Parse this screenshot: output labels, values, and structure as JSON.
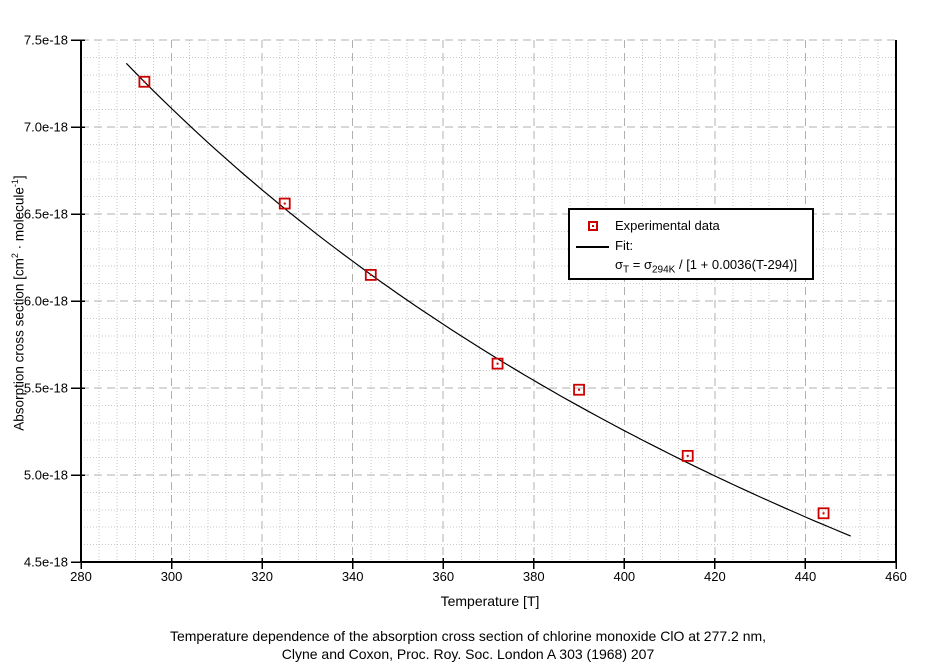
{
  "chart_data": {
    "type": "scatter",
    "caption_line1": "Temperature dependence of the absorption cross section of chlorine monoxide ClO at 277.2 nm,",
    "caption_line2": "Clyne and Coxon, Proc. Roy. Soc. London A 303 (1968) 207",
    "xlabel": "Temperature [T]",
    "ylabel": "Absorption cross section [cm2 · molecule-1]",
    "ylabel_parts": {
      "prefix": "Absorption cross section [cm",
      "sup1": "2",
      "mid": " · molecule",
      "sup2": "-1",
      "suffix": "]"
    },
    "xlim": [
      280,
      460
    ],
    "ylim_e18": [
      4.5,
      7.5
    ],
    "x_tick_labels": [
      "280",
      "300",
      "320",
      "340",
      "360",
      "380",
      "400",
      "420",
      "440",
      "460"
    ],
    "y_tick_labels": [
      "4.5e-18",
      "5.0e-18",
      "5.5e-18",
      "6.0e-18",
      "6.5e-18",
      "7.0e-18",
      "7.5e-18"
    ],
    "x_major_step": 20,
    "x_minor_step": 4,
    "y_major_step_e18": 0.5,
    "y_minor_step_e18": 0.1,
    "grid": {
      "major": "gray-dashed",
      "minor": "gray-dotted"
    },
    "legend_position": "upper-right-inside",
    "series": [
      {
        "name": "Experimental data",
        "type": "scatter",
        "marker": "open-square-center-dot",
        "color": "#cc0000",
        "x": [
          294,
          325,
          344,
          372,
          390,
          414,
          444
        ],
        "y_e18": [
          7.26,
          6.56,
          6.15,
          5.64,
          5.49,
          5.11,
          4.78
        ]
      },
      {
        "name": "Fit",
        "type": "line",
        "color": "#000000",
        "formula_text": "σT = σ294K / [1 + 0.0036(T-294)]",
        "sigma_294K_e18": 7.26,
        "coefficient": 0.0036,
        "T_ref": 294,
        "T_range": [
          290,
          450
        ]
      }
    ],
    "legend": {
      "experimental_label": "Experimental data",
      "fit_label": "Fit:",
      "f_sigma1": "σ",
      "f_sub1": "T",
      "f_eq": " = ",
      "f_sigma2": "σ",
      "f_sub2": "294K",
      "f_rest": " / [1 + 0.0036(T-294)]"
    },
    "colors": {
      "marker": "#cc0000",
      "fit_line": "#000000",
      "major_grid": "#b0b0b0",
      "minor_grid": "#c9c9c9",
      "axis": "#000000",
      "background": "#ffffff"
    }
  }
}
